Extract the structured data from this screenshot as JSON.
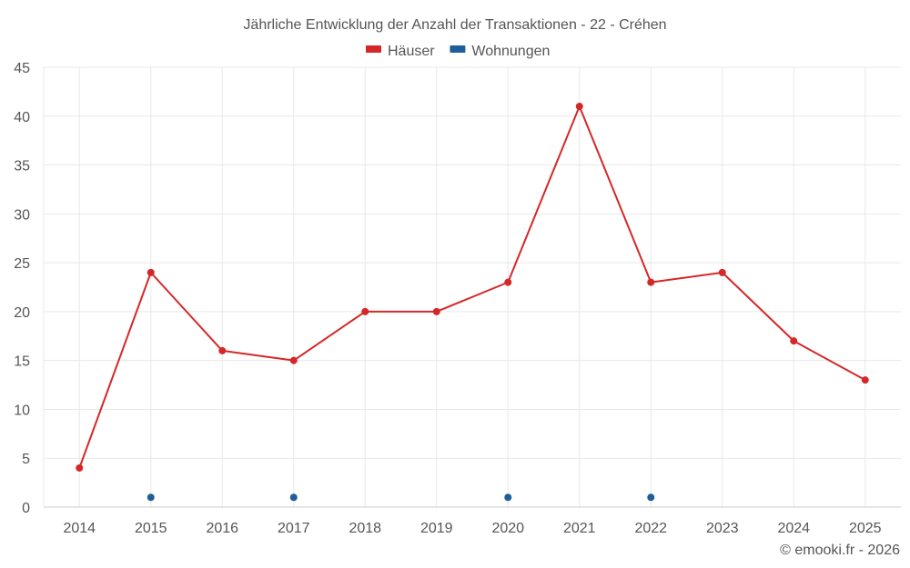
{
  "chart_data": {
    "type": "line",
    "title": "Jährliche Entwicklung der Anzahl der Transaktionen - 22 - Créhen",
    "categories": [
      "2014",
      "2015",
      "2016",
      "2017",
      "2018",
      "2019",
      "2020",
      "2021",
      "2022",
      "2023",
      "2024",
      "2025"
    ],
    "ylim": [
      0,
      45
    ],
    "yticks": [
      0,
      5,
      10,
      15,
      20,
      25,
      30,
      35,
      40,
      45
    ],
    "grid": true,
    "legend_position": "top-center",
    "xlabel": "",
    "ylabel": "",
    "series": [
      {
        "name": "Häuser",
        "color": "#d62728",
        "values": [
          4,
          24,
          16,
          15,
          20,
          20,
          23,
          41,
          23,
          24,
          17,
          13
        ]
      },
      {
        "name": "Wohnungen",
        "color": "#1f5f99",
        "values": [
          null,
          1,
          null,
          1,
          null,
          null,
          1,
          null,
          1,
          null,
          null,
          null
        ]
      }
    ]
  },
  "credit": "© emooki.fr - 2026"
}
